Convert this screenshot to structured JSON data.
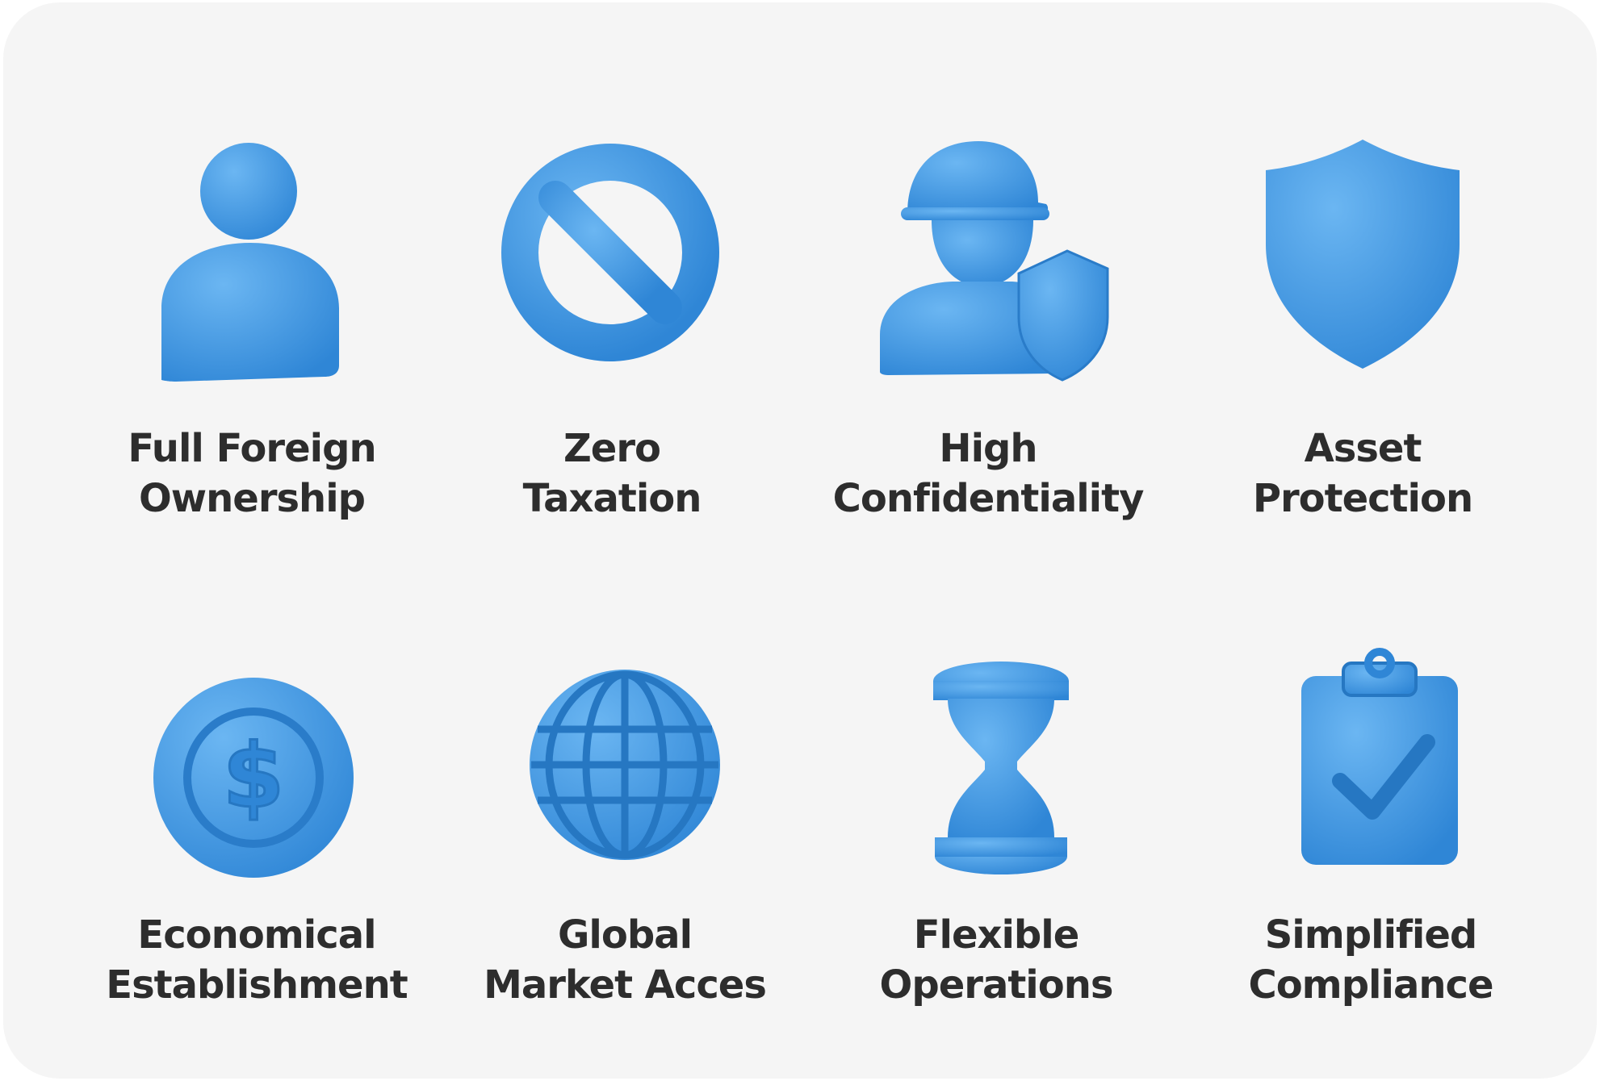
{
  "accent_color": "#3d9be9",
  "features": [
    {
      "icon": "person-icon",
      "line1": "Full Foreign",
      "line2": "Ownership"
    },
    {
      "icon": "prohibited-icon",
      "line1": "Zero",
      "line2": "Taxation"
    },
    {
      "icon": "guard-with-shield-icon",
      "line1": "High",
      "line2": "Confidentiality"
    },
    {
      "icon": "shield-icon",
      "line1": "Asset",
      "line2": "Protection"
    },
    {
      "icon": "dollar-coin-icon",
      "line1": "Economical",
      "line2": "Establishment"
    },
    {
      "icon": "globe-icon",
      "line1": "Global",
      "line2": "Market Acces"
    },
    {
      "icon": "hourglass-icon",
      "line1": "Flexible",
      "line2": "Operations"
    },
    {
      "icon": "clipboard-check-icon",
      "line1": "Simplified",
      "line2": "Compliance"
    }
  ]
}
